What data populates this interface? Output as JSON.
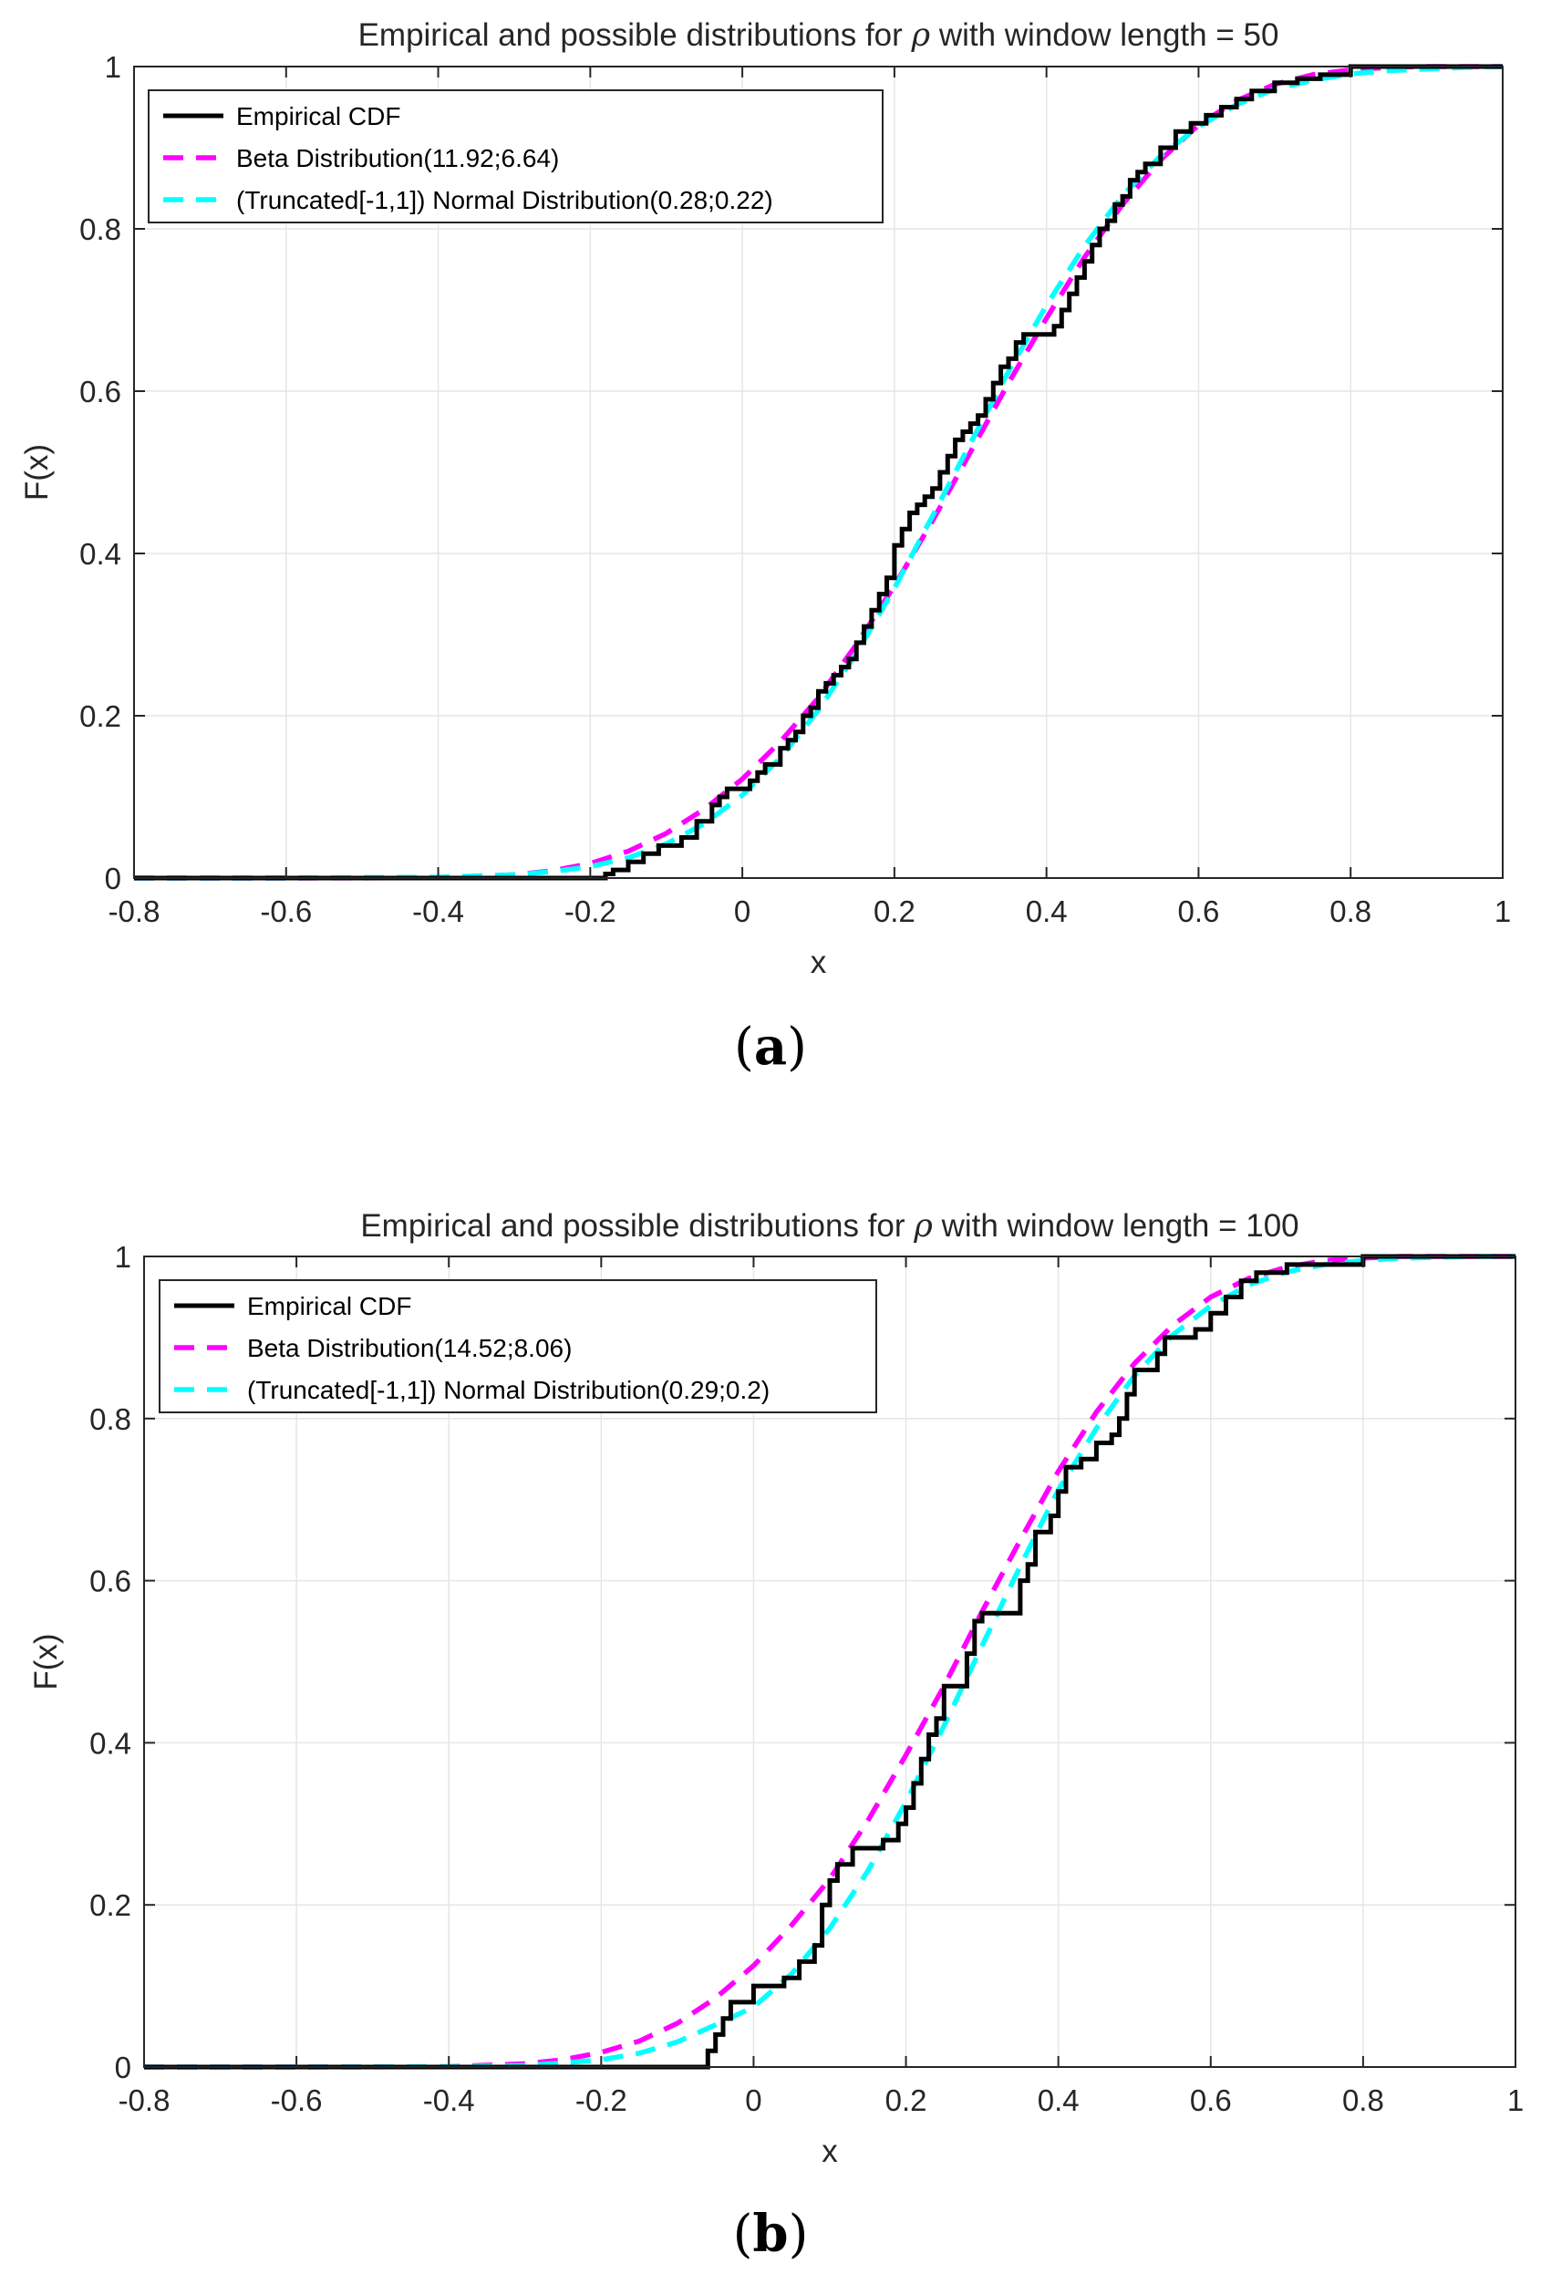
{
  "charts": [
    {
      "caption_letter": "a",
      "chart_data": {
        "type": "line",
        "title": "Empirical and possible distributions for ρ with window length = 50",
        "title_before": "Empirical and possible distributions for ",
        "title_symbol": "ρ",
        "title_after": " with window length = 50",
        "xlabel": "x",
        "ylabel": "F(x)",
        "xlim": [
          -0.8,
          1.0
        ],
        "ylim": [
          0,
          1
        ],
        "grid": true,
        "legend_position": "top-left",
        "xticks": [
          -0.8,
          -0.6,
          -0.4,
          -0.2,
          0,
          0.2,
          0.4,
          0.6,
          0.8,
          1
        ],
        "xtick_labels": [
          "-0.8",
          "-0.6",
          "-0.4",
          "-0.2",
          "0",
          "0.2",
          "0.4",
          "0.6",
          "0.8",
          "1"
        ],
        "yticks": [
          0,
          0.2,
          0.4,
          0.6,
          0.8,
          1
        ],
        "ytick_labels": [
          "0",
          "0.2",
          "0.4",
          "0.6",
          "0.8",
          "1"
        ],
        "series": [
          {
            "name": "Empirical CDF",
            "style": "step",
            "color": "#000000",
            "x": [
              -0.8,
              -0.18,
              -0.17,
              -0.15,
              -0.13,
              -0.11,
              -0.08,
              -0.06,
              -0.04,
              -0.03,
              -0.02,
              -0.01,
              0.0,
              0.01,
              0.02,
              0.03,
              0.05,
              0.06,
              0.07,
              0.08,
              0.09,
              0.1,
              0.11,
              0.12,
              0.13,
              0.14,
              0.15,
              0.16,
              0.17,
              0.18,
              0.19,
              0.2,
              0.21,
              0.22,
              0.23,
              0.24,
              0.25,
              0.26,
              0.27,
              0.28,
              0.29,
              0.3,
              0.31,
              0.32,
              0.33,
              0.34,
              0.35,
              0.36,
              0.37,
              0.38,
              0.39,
              0.4,
              0.41,
              0.42,
              0.43,
              0.44,
              0.45,
              0.46,
              0.47,
              0.48,
              0.49,
              0.5,
              0.51,
              0.52,
              0.53,
              0.55,
              0.57,
              0.59,
              0.6,
              0.61,
              0.63,
              0.65,
              0.67,
              0.7,
              0.73,
              0.76,
              0.8
            ],
            "y": [
              0,
              0.005,
              0.01,
              0.02,
              0.03,
              0.04,
              0.05,
              0.07,
              0.09,
              0.1,
              0.11,
              0.11,
              0.11,
              0.12,
              0.13,
              0.14,
              0.16,
              0.17,
              0.18,
              0.2,
              0.21,
              0.23,
              0.24,
              0.25,
              0.26,
              0.27,
              0.29,
              0.31,
              0.33,
              0.35,
              0.37,
              0.41,
              0.43,
              0.45,
              0.46,
              0.47,
              0.48,
              0.5,
              0.52,
              0.54,
              0.55,
              0.56,
              0.57,
              0.59,
              0.61,
              0.63,
              0.64,
              0.66,
              0.67,
              0.67,
              0.67,
              0.67,
              0.68,
              0.7,
              0.72,
              0.74,
              0.76,
              0.78,
              0.8,
              0.81,
              0.83,
              0.84,
              0.86,
              0.87,
              0.88,
              0.9,
              0.92,
              0.93,
              0.93,
              0.94,
              0.95,
              0.96,
              0.97,
              0.98,
              0.985,
              0.99,
              1.0
            ]
          },
          {
            "name": "Beta Distribution(11.92;6.64)",
            "style": "dashed",
            "color": "#ff00ff",
            "x": [
              -0.8,
              -0.6,
              -0.4,
              -0.3,
              -0.25,
              -0.2,
              -0.15,
              -0.1,
              -0.05,
              0.0,
              0.05,
              0.1,
              0.15,
              0.2,
              0.25,
              0.3,
              0.35,
              0.4,
              0.45,
              0.5,
              0.55,
              0.6,
              0.65,
              0.7,
              0.75,
              0.8,
              0.85,
              0.9,
              0.95,
              1.0
            ],
            "y": [
              0,
              0,
              0.0003,
              0.004,
              0.009,
              0.018,
              0.033,
              0.055,
              0.085,
              0.122,
              0.168,
              0.222,
              0.288,
              0.36,
              0.44,
              0.525,
              0.61,
              0.69,
              0.765,
              0.83,
              0.885,
              0.928,
              0.958,
              0.978,
              0.99,
              0.996,
              0.999,
              1.0,
              1.0,
              1.0
            ]
          },
          {
            "name": "(Truncated[-1,1]) Normal Distribution(0.28;0.22)",
            "style": "dashed",
            "color": "#00ffff",
            "x": [
              -0.8,
              -0.6,
              -0.4,
              -0.3,
              -0.25,
              -0.2,
              -0.15,
              -0.1,
              -0.05,
              0.0,
              0.05,
              0.1,
              0.15,
              0.2,
              0.25,
              0.3,
              0.35,
              0.4,
              0.45,
              0.5,
              0.55,
              0.6,
              0.65,
              0.7,
              0.75,
              0.8,
              0.85,
              0.9,
              0.95,
              1.0
            ],
            "y": [
              0,
              0,
              0.001,
              0.004,
              0.008,
              0.014,
              0.025,
              0.042,
              0.067,
              0.102,
              0.148,
              0.207,
              0.277,
              0.357,
              0.446,
              0.536,
              0.624,
              0.706,
              0.779,
              0.841,
              0.89,
              0.926,
              0.953,
              0.972,
              0.983,
              0.991,
              0.995,
              0.997,
              0.999,
              1.0
            ]
          }
        ]
      }
    },
    {
      "caption_letter": "b",
      "chart_data": {
        "type": "line",
        "title": "Empirical and possible distributions for ρ with window length = 100",
        "title_before": "Empirical and possible distributions for ",
        "title_symbol": "ρ",
        "title_after": " with window length = 100",
        "xlabel": "x",
        "ylabel": "F(x)",
        "xlim": [
          -0.8,
          1.0
        ],
        "ylim": [
          0,
          1
        ],
        "grid": true,
        "legend_position": "top-left",
        "xticks": [
          -0.8,
          -0.6,
          -0.4,
          -0.2,
          0,
          0.2,
          0.4,
          0.6,
          0.8,
          1
        ],
        "xtick_labels": [
          "-0.8",
          "-0.6",
          "-0.4",
          "-0.2",
          "0",
          "0.2",
          "0.4",
          "0.6",
          "0.8",
          "1"
        ],
        "yticks": [
          0,
          0.2,
          0.4,
          0.6,
          0.8,
          1
        ],
        "ytick_labels": [
          "0",
          "0.2",
          "0.4",
          "0.6",
          "0.8",
          "1"
        ],
        "series": [
          {
            "name": "Empirical CDF",
            "style": "step",
            "color": "#000000",
            "x": [
              -0.8,
              -0.06,
              -0.05,
              -0.04,
              -0.03,
              0.0,
              0.04,
              0.06,
              0.08,
              0.09,
              0.1,
              0.11,
              0.13,
              0.16,
              0.17,
              0.19,
              0.2,
              0.21,
              0.22,
              0.23,
              0.24,
              0.25,
              0.28,
              0.29,
              0.3,
              0.34,
              0.35,
              0.36,
              0.37,
              0.39,
              0.4,
              0.41,
              0.43,
              0.45,
              0.47,
              0.48,
              0.49,
              0.5,
              0.53,
              0.54,
              0.56,
              0.58,
              0.6,
              0.62,
              0.64,
              0.66,
              0.7,
              0.8
            ],
            "y": [
              0,
              0.02,
              0.04,
              0.06,
              0.08,
              0.1,
              0.11,
              0.13,
              0.15,
              0.2,
              0.23,
              0.25,
              0.27,
              0.27,
              0.28,
              0.3,
              0.32,
              0.35,
              0.38,
              0.41,
              0.43,
              0.47,
              0.51,
              0.55,
              0.56,
              0.56,
              0.6,
              0.62,
              0.66,
              0.68,
              0.71,
              0.74,
              0.75,
              0.77,
              0.78,
              0.8,
              0.83,
              0.86,
              0.88,
              0.9,
              0.9,
              0.91,
              0.93,
              0.95,
              0.97,
              0.98,
              0.99,
              1.0
            ]
          },
          {
            "name": "Beta Distribution(14.52;8.06)",
            "style": "dashed",
            "color": "#ff00ff",
            "x": [
              -0.8,
              -0.6,
              -0.4,
              -0.3,
              -0.25,
              -0.2,
              -0.15,
              -0.1,
              -0.05,
              0.0,
              0.05,
              0.1,
              0.15,
              0.2,
              0.25,
              0.3,
              0.35,
              0.4,
              0.45,
              0.5,
              0.55,
              0.6,
              0.65,
              0.7,
              0.75,
              0.8,
              0.85,
              0.9,
              0.95,
              1.0
            ],
            "y": [
              0,
              0,
              0.0005,
              0.004,
              0.009,
              0.018,
              0.032,
              0.054,
              0.085,
              0.125,
              0.175,
              0.232,
              0.304,
              0.385,
              0.47,
              0.562,
              0.65,
              0.735,
              0.808,
              0.868,
              0.915,
              0.95,
              0.973,
              0.987,
              0.995,
              0.998,
              1.0,
              1.0,
              1.0,
              1.0
            ]
          },
          {
            "name": "(Truncated[-1,1]) Normal Distribution(0.29;0.2)",
            "style": "dashed",
            "color": "#00ffff",
            "x": [
              -0.8,
              -0.6,
              -0.4,
              -0.3,
              -0.25,
              -0.2,
              -0.15,
              -0.1,
              -0.05,
              0.0,
              0.05,
              0.1,
              0.15,
              0.2,
              0.25,
              0.3,
              0.35,
              0.4,
              0.45,
              0.5,
              0.55,
              0.6,
              0.65,
              0.7,
              0.75,
              0.8,
              0.85,
              0.9,
              0.95,
              1.0
            ],
            "y": [
              0,
              0,
              0.0003,
              0.002,
              0.005,
              0.009,
              0.017,
              0.031,
              0.052,
              0.074,
              0.115,
              0.171,
              0.242,
              0.327,
              0.421,
              0.52,
              0.618,
              0.712,
              0.788,
              0.853,
              0.903,
              0.939,
              0.965,
              0.981,
              0.99,
              0.995,
              0.998,
              0.999,
              1.0,
              1.0
            ]
          }
        ]
      }
    }
  ]
}
